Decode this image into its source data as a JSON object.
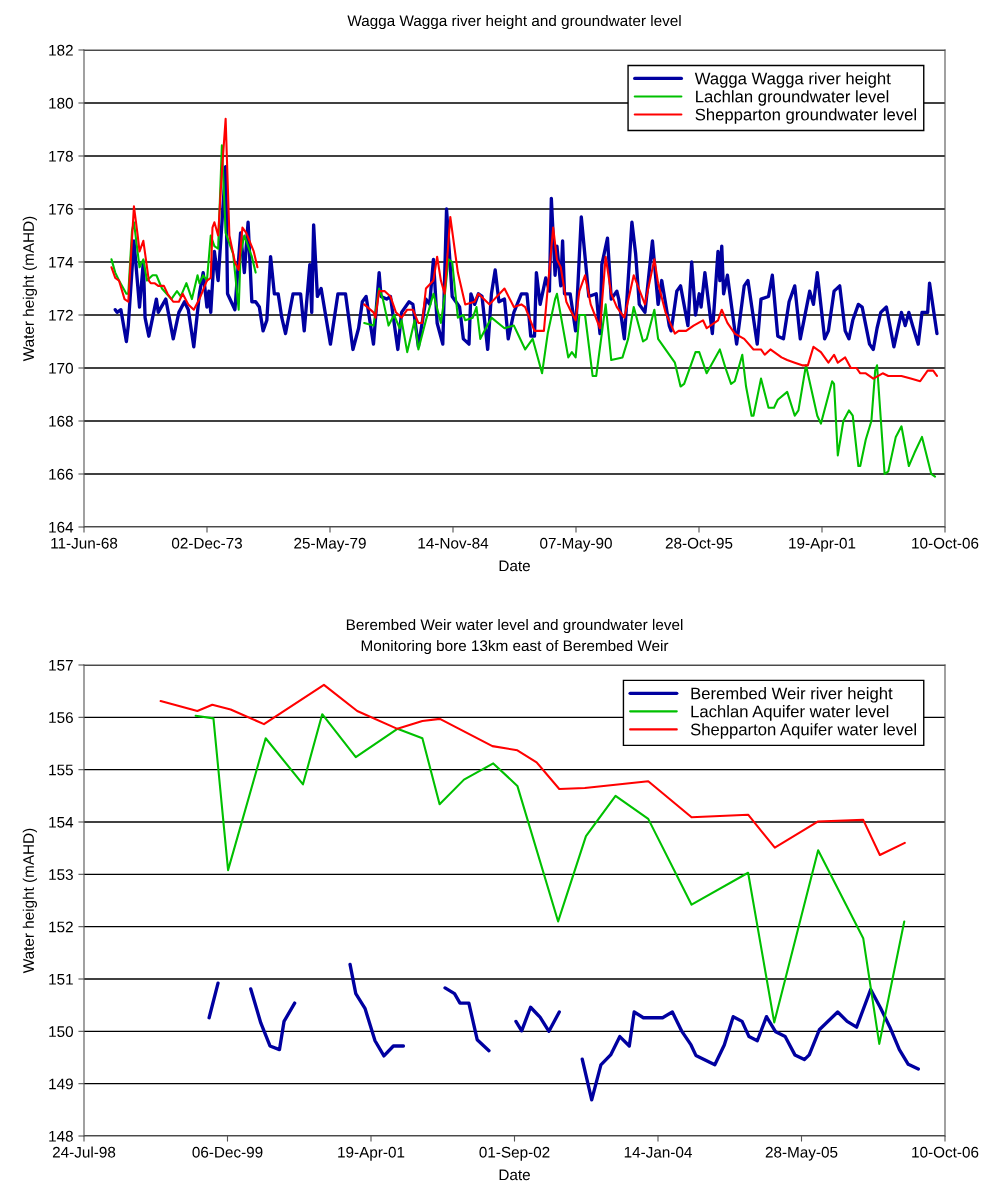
{
  "chart_data": [
    {
      "type": "line",
      "title": "Wagga Wagga river height and groundwater level",
      "xlabel": "Date",
      "ylabel": "Water height (mAHD)",
      "xlim": [
        "1968-06-11",
        "2006-10-10"
      ],
      "xticks": [
        {
          "value": "1968-06-11",
          "label": "11-Jun-68"
        },
        {
          "value": "1973-12-02",
          "label": "02-Dec-73"
        },
        {
          "value": "1979-05-25",
          "label": "25-May-79"
        },
        {
          "value": "1984-11-14",
          "label": "14-Nov-84"
        },
        {
          "value": "1990-05-07",
          "label": "07-May-90"
        },
        {
          "value": "1995-10-28",
          "label": "28-Oct-95"
        },
        {
          "value": "2001-04-19",
          "label": "19-Apr-01"
        },
        {
          "value": "2006-10-10",
          "label": "10-Oct-06"
        }
      ],
      "ylim": [
        164,
        182
      ],
      "yticks": [
        164,
        166,
        168,
        170,
        172,
        174,
        176,
        178,
        180,
        182
      ],
      "grid": "y",
      "legend": "top right",
      "series": [
        {
          "name": "Wagga Wagga river height",
          "color": "#0000a0",
          "x": [
            "1969-11",
            "1969-12",
            "1970-02",
            "1970-05",
            "1970-06",
            "1970-09",
            "1970-12",
            "1971-02",
            "1971-03",
            "1971-05",
            "1971-09",
            "1971-10",
            "1972-02",
            "1972-06",
            "1972-09",
            "1972-12",
            "1973-02",
            "1973-05",
            "1973-08",
            "1973-10",
            "1973-12",
            "1974-01",
            "1974-02",
            "1974-04",
            "1974-06",
            "1974-10",
            "1974-11",
            "1975-03",
            "1975-06",
            "1975-08",
            "1975-10",
            "1975-12",
            "1976-02",
            "1976-04",
            "1976-06",
            "1976-08",
            "1976-10",
            "1976-12",
            "1977-02",
            "1977-04",
            "1977-06",
            "1977-10",
            "1978-02",
            "1978-04",
            "1978-07",
            "1978-08",
            "1978-09",
            "1978-11",
            "1979-01",
            "1979-06",
            "1979-10",
            "1980-02",
            "1980-06",
            "1980-09",
            "1980-11",
            "1981-01",
            "1981-05",
            "1981-08",
            "1981-09",
            "1981-12",
            "1982-02",
            "1982-06",
            "1982-08",
            "1982-12",
            "1983-02",
            "1983-05",
            "1983-09",
            "1983-11",
            "1984-01",
            "1984-03",
            "1984-06",
            "1984-08",
            "1984-11",
            "1985-03",
            "1985-05",
            "1985-08",
            "1985-09",
            "1985-11",
            "1986-01",
            "1986-03",
            "1986-06",
            "1986-08",
            "1986-10",
            "1986-12",
            "1987-03",
            "1987-05",
            "1987-08",
            "1987-12",
            "1988-03",
            "1988-05",
            "1988-07",
            "1988-08",
            "1988-10",
            "1989-01",
            "1989-03",
            "1989-04",
            "1989-06",
            "1989-07",
            "1989-09",
            "1989-10",
            "1989-11",
            "1990-02",
            "1990-05",
            "1990-08",
            "1990-12",
            "1991-04",
            "1991-06",
            "1991-07",
            "1991-10",
            "1991-12",
            "1992-03",
            "1992-04",
            "1992-07",
            "1992-11",
            "1993-01",
            "1993-03",
            "1993-06",
            "1993-10",
            "1994-01",
            "1994-03",
            "1994-07",
            "1994-08",
            "1994-11",
            "1995-01",
            "1995-05",
            "1995-07",
            "1995-09",
            "1995-11",
            "1995-12",
            "1996-02",
            "1996-06",
            "1996-09",
            "1996-10",
            "1996-11",
            "1996-12",
            "1997-02",
            "1997-07",
            "1997-11",
            "1998-01",
            "1998-06",
            "1998-08",
            "1998-12",
            "1999-02",
            "1999-05",
            "1999-08",
            "1999-11",
            "2000-02",
            "2000-05",
            "2000-10",
            "2000-12",
            "2001-02",
            "2001-06",
            "2001-08",
            "2001-11",
            "2002-02",
            "2002-05",
            "2002-07",
            "2002-09",
            "2002-12",
            "2003-02",
            "2003-06",
            "2003-08",
            "2003-10",
            "2003-12",
            "2004-03",
            "2004-07",
            "2004-11",
            "2005-01",
            "2005-03",
            "2005-05",
            "2005-08",
            "2005-10",
            "2006-01",
            "2006-02",
            "2006-06"
          ],
          "values": [
            172.2,
            172.1,
            172.2,
            171.0,
            171.6,
            174.8,
            172.3,
            174.0,
            171.9,
            171.2,
            172.6,
            172.1,
            172.6,
            171.1,
            172.1,
            172.5,
            172.2,
            170.8,
            172.8,
            173.6,
            172.3,
            172.9,
            172.1,
            174.4,
            173.3,
            177.6,
            172.8,
            172.2,
            175.1,
            173.6,
            175.5,
            172.5,
            172.5,
            172.3,
            171.4,
            171.8,
            174.2,
            172.8,
            172.8,
            171.9,
            171.3,
            172.8,
            172.8,
            171.4,
            173.9,
            172.1,
            175.4,
            172.7,
            173.0,
            170.9,
            172.8,
            172.8,
            170.7,
            171.5,
            172.5,
            172.7,
            170.9,
            173.6,
            172.7,
            172.6,
            172.7,
            170.7,
            172.1,
            172.5,
            172.4,
            170.8,
            172.6,
            172.4,
            174.1,
            171.7,
            170.9,
            176.0,
            172.7,
            172.3,
            171.1,
            170.9,
            172.8,
            172.4,
            172.8,
            172.7,
            170.7,
            172.8,
            173.7,
            172.5,
            172.6,
            171.1,
            172.1,
            172.8,
            172.8,
            171.2,
            171.2,
            173.6,
            172.4,
            173.4,
            172.9,
            176.4,
            173.5,
            174.6,
            173.1,
            174.8,
            172.8,
            172.8,
            171.4,
            175.7,
            172.7,
            172.8,
            171.3,
            173.9,
            174.9,
            172.6,
            172.9,
            172.6,
            171.1,
            175.5,
            174.3,
            172.4,
            172.1,
            174.8,
            172.4,
            173.3,
            171.6,
            171.4,
            172.9,
            173.1,
            171.6,
            174.0,
            172.0,
            172.8,
            172.3,
            173.6,
            171.3,
            174.4,
            173.3,
            174.6,
            172.8,
            173.5,
            170.9,
            173.1,
            173.3,
            170.9,
            172.6,
            172.7,
            173.5,
            171.2,
            171.1,
            172.5,
            173.1,
            171.1,
            172.9,
            172.4,
            173.6,
            171.1,
            171.4,
            172.9,
            173.1,
            171.4,
            171.1,
            171.8,
            172.4,
            172.3,
            170.9,
            170.7,
            171.5,
            172.1,
            172.3,
            170.8,
            172.1,
            171.6,
            172.1,
            171.6,
            170.9,
            172.1,
            172.1,
            173.2,
            171.3
          ]
        },
        {
          "name": "Lachlan groundwater level",
          "color": "#00c000",
          "x": [
            "1969-09",
            "1969-11",
            "1970-01",
            "1970-05",
            "1970-06",
            "1970-08",
            "1970-09",
            "1970-12",
            "1971-02",
            "1971-04",
            "1971-07",
            "1971-09",
            "1971-12",
            "1972-05",
            "1972-08",
            "1972-10",
            "1973-01",
            "1973-04",
            "1973-07",
            "1973-08",
            "1973-10",
            "1973-12",
            "1974-02",
            "1974-04",
            "1974-06",
            "1974-08",
            "1974-10",
            "1975-02",
            "1975-05",
            "1975-06",
            "1975-08",
            "1975-12",
            "1976-02",
            "1978-06",
            "1980-12",
            "1981-05",
            "1981-08",
            "1981-10",
            "1982-01",
            "1982-04",
            "1982-07",
            "1982-08",
            "1982-11",
            "1983-03",
            "1983-05",
            "1983-09",
            "1984-01",
            "1984-05",
            "1984-07",
            "1984-09",
            "1984-11",
            "1985-02",
            "1985-05",
            "1985-06",
            "1985-10",
            "1985-12",
            "1986-02",
            "1986-08",
            "1987-03",
            "1987-08",
            "1987-10",
            "1988-02",
            "1988-06",
            "1988-11",
            "1989-02",
            "1989-06",
            "1989-07",
            "1989-10",
            "1990-01",
            "1990-03",
            "1990-05",
            "1990-07",
            "1990-10",
            "1991-02",
            "1991-04",
            "1991-09",
            "1991-12",
            "1992-06",
            "1992-09",
            "1992-12",
            "1993-05",
            "1993-07",
            "1993-11",
            "1994-01",
            "1994-05",
            "1994-10",
            "1995-01",
            "1995-03",
            "1995-09",
            "1995-11",
            "1996-03",
            "1996-10",
            "1997-01",
            "1997-04",
            "1997-06",
            "1997-10",
            "1997-12",
            "1998-03",
            "1998-04",
            "1998-08",
            "1998-12",
            "1999-03",
            "1999-05",
            "1999-10",
            "2000-02",
            "2000-04",
            "2000-08",
            "2001-02",
            "2001-04",
            "2001-10",
            "2001-11",
            "2002-01",
            "2002-04",
            "2002-07",
            "2002-09",
            "2002-12",
            "2003-01",
            "2003-04",
            "2003-07",
            "2003-09",
            "2003-10",
            "2004-02",
            "2004-04",
            "2004-08",
            "2004-11",
            "2005-03",
            "2005-06",
            "2005-10",
            "2006-03",
            "2006-05"
          ],
          "values": [
            174.1,
            173.6,
            173.3,
            172.8,
            172.8,
            175.2,
            175.5,
            173.8,
            174.1,
            173.3,
            173.5,
            173.5,
            173.0,
            172.6,
            172.9,
            172.7,
            173.2,
            172.6,
            173.5,
            173.2,
            173.5,
            173.3,
            175.0,
            174.6,
            174.5,
            178.4,
            175.1,
            174.3,
            172.2,
            174.3,
            175.0,
            174.2,
            173.6,
            null,
            171.7,
            171.6,
            173.0,
            172.6,
            171.6,
            172.0,
            171.5,
            171.8,
            170.6,
            171.8,
            170.7,
            171.8,
            172.8,
            171.7,
            172.7,
            174.1,
            174.0,
            171.9,
            172.0,
            171.8,
            171.9,
            172.3,
            171.1,
            171.9,
            171.5,
            171.6,
            171.3,
            170.7,
            171.1,
            169.8,
            171.3,
            172.6,
            172.8,
            171.6,
            170.4,
            170.6,
            170.4,
            172.0,
            172.0,
            169.7,
            169.7,
            172.4,
            170.3,
            170.4,
            171.1,
            172.3,
            171.0,
            171.1,
            172.2,
            171.1,
            170.7,
            170.2,
            169.3,
            169.4,
            170.6,
            170.6,
            169.8,
            170.7,
            170.0,
            169.4,
            169.5,
            170.5,
            169.3,
            168.2,
            168.2,
            169.6,
            168.5,
            168.5,
            168.8,
            169.1,
            168.2,
            168.4,
            170.1,
            168.2,
            167.9,
            169.5,
            169.4,
            166.7,
            168.0,
            168.4,
            168.2,
            166.3,
            166.3,
            167.3,
            168.0,
            169.9,
            170.1,
            166.0,
            166.1,
            167.4,
            167.8,
            166.3,
            166.8,
            167.4,
            166.0,
            165.9
          ]
        },
        {
          "name": "Shepparton groundwater level",
          "color": "#ff0000",
          "x": [
            "1969-09",
            "1969-11",
            "1970-01",
            "1970-04",
            "1970-06",
            "1970-09",
            "1970-11",
            "1970-12",
            "1971-02",
            "1971-05",
            "1971-06",
            "1971-08",
            "1971-10",
            "1972-01",
            "1972-03",
            "1972-06",
            "1972-09",
            "1972-11",
            "1973-02",
            "1973-05",
            "1973-08",
            "1973-12",
            "1974-02",
            "1974-03",
            "1974-04",
            "1974-06",
            "1974-08",
            "1974-10",
            "1974-12",
            "1975-03",
            "1975-05",
            "1975-07",
            "1975-09",
            "1976-01",
            "1976-03",
            "1978-06",
            "1980-12",
            "1981-05",
            "1981-06",
            "1981-08",
            "1981-11",
            "1982-02",
            "1982-05",
            "1982-08",
            "1982-11",
            "1983-02",
            "1983-05",
            "1983-07",
            "1983-09",
            "1984-01",
            "1984-03",
            "1984-05",
            "1984-07",
            "1984-10",
            "1985-02",
            "1985-06",
            "1985-11",
            "1986-01",
            "1986-07",
            "1987-03",
            "1987-08",
            "1987-12",
            "1988-02",
            "1988-07",
            "1988-12",
            "1989-05",
            "1989-07",
            "1989-09",
            "1989-12",
            "1990-02",
            "1990-05",
            "1990-07",
            "1990-10",
            "1991-01",
            "1991-06",
            "1991-09",
            "1991-12",
            "1992-03",
            "1992-07",
            "1992-12",
            "1993-06",
            "1993-11",
            "1994-01",
            "1994-05",
            "1994-10",
            "1994-12",
            "1995-04",
            "1995-08",
            "1996-01",
            "1996-03",
            "1996-09",
            "1996-11",
            "1997-02",
            "1997-06",
            "1997-11",
            "1998-04",
            "1998-08",
            "1998-10",
            "1999-01",
            "1999-07",
            "1999-10",
            "2000-02",
            "2000-06",
            "2000-09",
            "2000-12",
            "2001-04",
            "2001-08",
            "2001-11",
            "2002-01",
            "2002-05",
            "2002-08",
            "2002-11",
            "2003-01",
            "2003-04",
            "2003-08",
            "2004-01",
            "2004-04",
            "2004-11",
            "2005-04",
            "2005-09",
            "2006-01",
            "2006-04",
            "2006-06"
          ],
          "values": [
            173.8,
            173.4,
            173.3,
            172.6,
            172.5,
            176.1,
            175.0,
            174.4,
            174.8,
            173.3,
            173.2,
            173.2,
            173.1,
            173.1,
            172.8,
            172.5,
            172.5,
            172.8,
            172.4,
            172.2,
            172.6,
            173.3,
            173.4,
            175.3,
            175.5,
            175.0,
            177.4,
            179.4,
            175.0,
            174.0,
            173.7,
            175.3,
            175.1,
            174.4,
            173.8,
            null,
            172.4,
            172.1,
            171.9,
            172.9,
            172.9,
            172.7,
            172.1,
            171.9,
            172.2,
            172.2,
            171.7,
            171.7,
            173.0,
            173.3,
            174.2,
            173.3,
            172.8,
            175.7,
            173.6,
            172.4,
            172.5,
            172.8,
            172.4,
            173.0,
            172.3,
            172.4,
            172.3,
            171.4,
            171.4,
            175.3,
            174.1,
            173.8,
            172.5,
            172.2,
            171.8,
            172.9,
            173.5,
            172.4,
            171.5,
            174.2,
            172.8,
            172.3,
            171.9,
            173.5,
            172.4,
            174.1,
            173.2,
            172.1,
            171.3,
            171.4,
            171.4,
            171.6,
            171.8,
            171.5,
            171.8,
            172.2,
            171.7,
            171.3,
            171.1,
            170.7,
            170.7,
            170.5,
            170.7,
            170.4,
            170.3,
            170.2,
            170.1,
            170.1,
            170.8,
            170.6,
            170.2,
            170.5,
            170.2,
            170.4,
            170.0,
            170.0,
            169.8,
            169.8,
            169.6,
            169.8,
            169.7,
            169.7,
            169.6,
            169.5,
            169.9,
            169.9,
            169.7
          ]
        }
      ]
    },
    {
      "type": "line",
      "title": "Berembed Weir water level and groundwater level",
      "subtitle": "Monitoring bore 13km east of Berembed Weir",
      "xlabel": "Date",
      "ylabel": "Water height (mAHD)",
      "xlim": [
        "1998-07-24",
        "2006-10-10"
      ],
      "xticks": [
        {
          "value": "1998-07-24",
          "label": "24-Jul-98"
        },
        {
          "value": "1999-12-06",
          "label": "06-Dec-99"
        },
        {
          "value": "2001-04-19",
          "label": "19-Apr-01"
        },
        {
          "value": "2002-09-01",
          "label": "01-Sep-02"
        },
        {
          "value": "2004-01-14",
          "label": "14-Jan-04"
        },
        {
          "value": "2005-05-28",
          "label": "28-May-05"
        },
        {
          "value": "2006-10-10",
          "label": "10-Oct-06"
        }
      ],
      "ylim": [
        148,
        157
      ],
      "yticks": [
        148,
        149,
        150,
        151,
        152,
        153,
        154,
        155,
        156,
        157
      ],
      "grid": "y",
      "legend": "top right",
      "series": [
        {
          "name": "Berembed Weir river height",
          "color": "#0000a0",
          "x": [
            "1999-10-03",
            "1999-11-03",
            "2000-01-01",
            "2000-02-25",
            "2000-03-31",
            "2000-05-02",
            "2000-06-04",
            "2000-06-20",
            "2000-07-27",
            "2000-11-01",
            "2001-02-05",
            "2001-02-25",
            "2001-03-29",
            "2001-05-03",
            "2001-06-03",
            "2001-07-06",
            "2001-08-10",
            "2001-11-01",
            "2002-01-02",
            "2002-02-04",
            "2002-02-23",
            "2002-03-26",
            "2002-04-24",
            "2002-06-04",
            "2002-07-20",
            "2002-09-06",
            "2002-09-26",
            "2002-10-27",
            "2002-11-29",
            "2002-12-30",
            "2003-02-04",
            "2003-03-20",
            "2003-04-25",
            "2003-05-28",
            "2003-06-29",
            "2003-08-02",
            "2003-09-03",
            "2003-10-06",
            "2003-10-23",
            "2003-11-24",
            "2004-01-30",
            "2004-03-04",
            "2004-04-05",
            "2004-05-08",
            "2004-05-25",
            "2004-07-30",
            "2004-09-01",
            "2004-10-02",
            "2004-11-02",
            "2004-11-26",
            "2004-12-25",
            "2005-01-26",
            "2005-02-27",
            "2005-04-01",
            "2005-05-05",
            "2005-06-07",
            "2005-06-24",
            "2005-07-29",
            "2005-10-01",
            "2005-11-03",
            "2005-12-06",
            "2006-01-24",
            "2006-02-27",
            "2006-04-01",
            "2006-05-04",
            "2006-06-04",
            "2006-07-09"
          ],
          "values": [
            150.26,
            150.92,
            null,
            150.81,
            150.16,
            149.72,
            149.65,
            150.19,
            150.54,
            null,
            151.28,
            150.72,
            150.44,
            149.82,
            149.53,
            149.72,
            149.72,
            null,
            150.83,
            150.72,
            150.54,
            150.54,
            149.84,
            149.63,
            null,
            150.19,
            150.01,
            150.46,
            150.27,
            150.0,
            150.37,
            null,
            149.47,
            148.69,
            149.36,
            149.55,
            149.9,
            149.72,
            150.37,
            150.26,
            150.26,
            150.37,
            150.01,
            149.74,
            149.54,
            149.36,
            149.74,
            150.28,
            150.19,
            149.9,
            149.82,
            150.28,
            149.99,
            149.9,
            149.55,
            149.46,
            149.55,
            150.03,
            150.37,
            150.19,
            150.08,
            150.8,
            150.45,
            150.08,
            149.65,
            149.37,
            149.28
          ]
        },
        {
          "name": "Lachlan Aquifer water level",
          "color": "#00c000",
          "x": [
            "1999-08-17",
            "1999-10-18",
            "1999-12-08",
            "2000-04-17",
            "2000-08-25",
            "2000-10-31",
            "2001-02-25",
            "2001-07-20",
            "2001-10-15",
            "2001-12-14",
            "2002-03-09",
            "2002-06-19",
            "2002-09-11",
            "2003-01-31",
            "2003-05-08",
            "2003-08-19",
            "2003-12-11",
            "2004-05-10",
            "2004-11-23",
            "2005-02-22",
            "2005-07-25",
            "2005-12-29",
            "2006-02-23",
            "2006-05-21"
          ],
          "values": [
            156.03,
            155.98,
            153.08,
            155.6,
            154.72,
            156.06,
            155.24,
            155.78,
            155.6,
            154.34,
            154.81,
            155.12,
            154.69,
            152.1,
            153.73,
            154.5,
            154.06,
            152.42,
            153.03,
            150.17,
            153.46,
            151.78,
            149.76,
            152.1
          ]
        },
        {
          "name": "Shepparton Aquifer water level",
          "color": "#ff0000",
          "x": [
            "1999-04-17",
            "1999-08-23",
            "1999-10-14",
            "1999-12-17",
            "2000-04-11",
            "2000-11-06",
            "2001-03-02",
            "2001-07-20",
            "2001-10-15",
            "2001-12-15",
            "2002-06-16",
            "2002-09-11",
            "2002-11-17",
            "2003-02-04",
            "2003-05-04",
            "2003-12-11",
            "2004-05-10",
            "2004-11-23",
            "2005-02-24",
            "2005-07-25",
            "2005-12-29",
            "2006-02-25",
            "2006-05-23"
          ],
          "values": [
            156.31,
            156.12,
            156.24,
            156.15,
            155.87,
            156.62,
            156.12,
            155.78,
            155.93,
            155.97,
            155.45,
            155.37,
            155.14,
            154.63,
            154.65,
            154.78,
            154.09,
            154.14,
            153.51,
            154.01,
            154.04,
            153.37,
            153.6
          ]
        }
      ]
    }
  ]
}
